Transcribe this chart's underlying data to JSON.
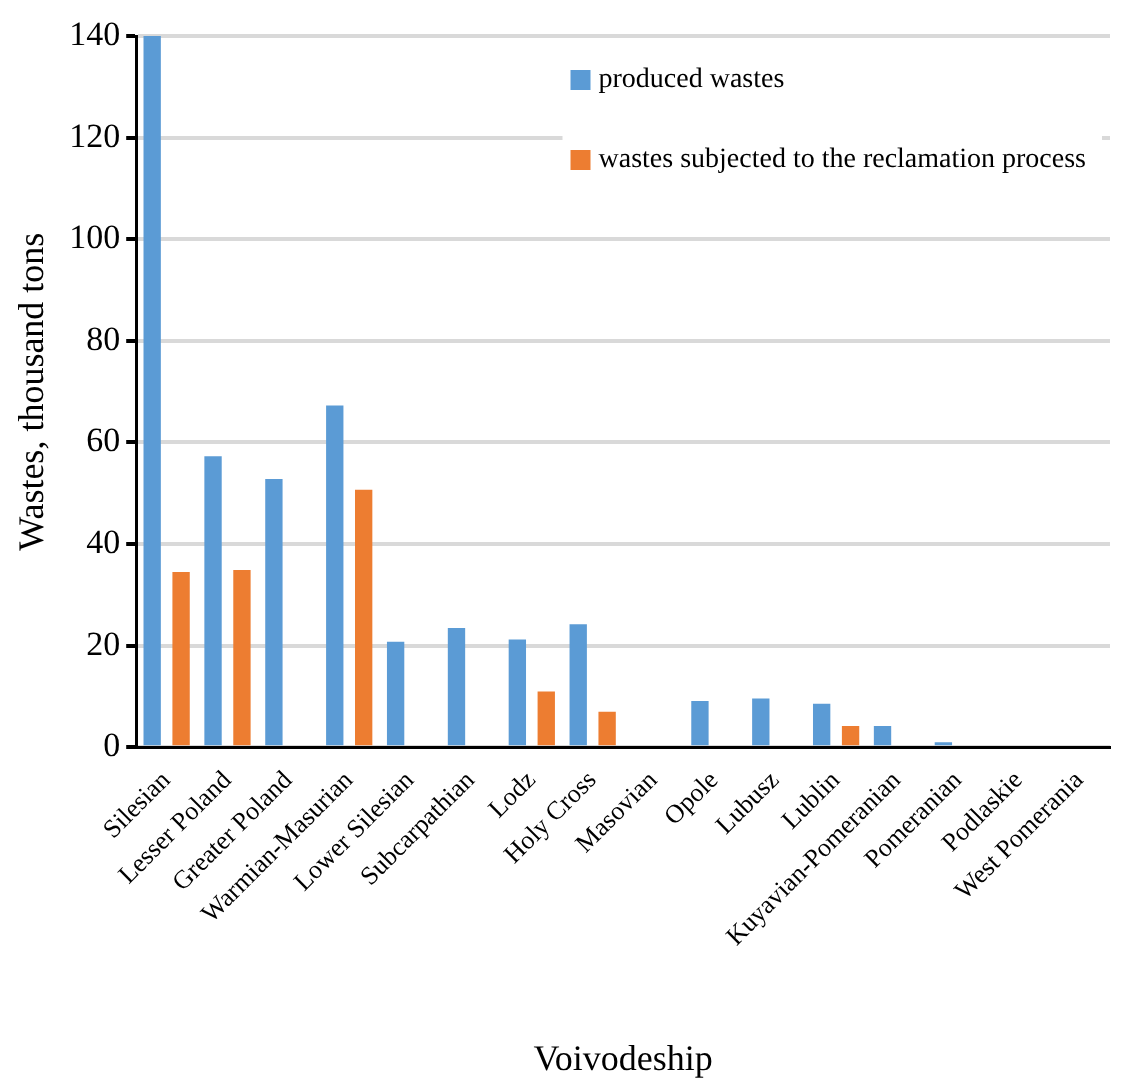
{
  "chart_data": {
    "type": "bar",
    "xlabel": "Voivodeship",
    "ylabel": "Wastes, thousand tons",
    "categories": [
      "Silesian",
      "Lesser Poland",
      "Greater Poland",
      "Warmian-Masurian",
      "Lower Silesian",
      "Subcarpathian",
      "Lodz",
      "Holy Cross",
      "Masovian",
      "Opole",
      "Lubusz",
      "Lublin",
      "Kuyavian-Pomeranian",
      "Pomeranian",
      "Podlaskie",
      "West Pomerania"
    ],
    "series": [
      {
        "name": "produced wastes",
        "color": "#5b9bd5",
        "values": [
          140,
          57.3,
          52.8,
          67.3,
          20.8,
          23.5,
          21.2,
          24.2,
          0,
          9.1,
          9.6,
          8.6,
          4.2,
          1,
          0,
          0
        ]
      },
      {
        "name": "wastes subjected to the reclamation process",
        "color": "#ed7d31",
        "values": [
          34.5,
          34.9,
          0,
          50.7,
          0,
          0,
          11,
          7,
          0,
          0,
          0,
          4.2,
          0,
          0,
          0,
          0
        ]
      }
    ],
    "ylim": [
      0,
      140
    ],
    "yticks": [
      0,
      20,
      40,
      60,
      80,
      100,
      120,
      140
    ],
    "grid": "y",
    "legend": "top right"
  }
}
